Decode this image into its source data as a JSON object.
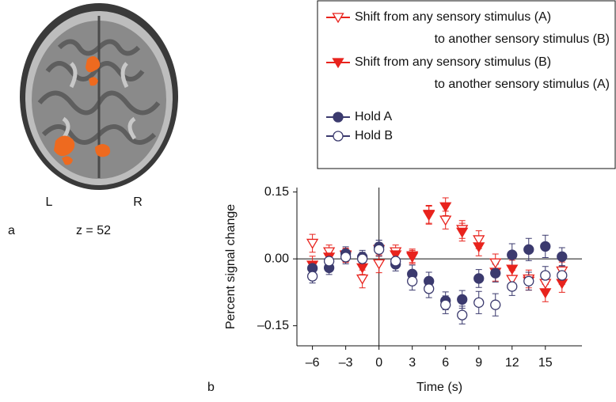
{
  "panel_a": {
    "left_label": "L",
    "right_label": "R",
    "panel_label": "a",
    "slice_label": "z = 52"
  },
  "panel_b_label": "b",
  "chart_data": {
    "type": "line",
    "x_label": "Time (s)",
    "y_label": "Percent signal change",
    "x": [
      -6,
      -4.5,
      -3,
      -1.5,
      0,
      1.5,
      3,
      4.5,
      6,
      7.5,
      9,
      10.5,
      12,
      13.5,
      15,
      16.5
    ],
    "series": [
      {
        "name": "Shift from any sensory stimulus (A) to another sensory stimulus (B)",
        "color": "#e8231d",
        "marker": "triangle-down",
        "filled": false,
        "values": [
          0.035,
          0.016,
          0.007,
          -0.045,
          -0.011,
          0.016,
          0.004,
          0.1,
          0.087,
          0.066,
          0.043,
          -0.009,
          -0.046,
          -0.045,
          -0.055,
          -0.027
        ],
        "errors": [
          0.02,
          0.015,
          0.015,
          0.02,
          0.02,
          0.015,
          0.015,
          0.02,
          0.02,
          0.02,
          0.02,
          0.02,
          0.02,
          0.02,
          0.02,
          0.02
        ]
      },
      {
        "name": "Shift from any sensory stimulus (B) to another sensory stimulus (A)",
        "color": "#e8231d",
        "marker": "triangle-down",
        "filled": true,
        "values": [
          -0.014,
          0.004,
          0.009,
          -0.02,
          0.021,
          0.009,
          0.007,
          0.098,
          0.117,
          0.06,
          0.027,
          -0.03,
          -0.023,
          -0.05,
          -0.076,
          -0.055
        ],
        "errors": [
          0.02,
          0.015,
          0.015,
          0.015,
          0.015,
          0.015,
          0.015,
          0.02,
          0.02,
          0.02,
          0.02,
          0.02,
          0.02,
          0.02,
          0.02,
          0.02
        ]
      },
      {
        "name": "Hold A",
        "color": "#3b3a6e",
        "marker": "circle",
        "filled": true,
        "values": [
          -0.021,
          -0.02,
          0.012,
          0.004,
          0.027,
          -0.012,
          -0.034,
          -0.05,
          -0.094,
          -0.091,
          -0.044,
          -0.032,
          0.009,
          0.021,
          0.028,
          0.005
        ],
        "errors": [
          0.015,
          0.015,
          0.015,
          0.015,
          0.015,
          0.015,
          0.02,
          0.02,
          0.02,
          0.02,
          0.02,
          0.02,
          0.025,
          0.025,
          0.025,
          0.02
        ]
      },
      {
        "name": "Hold B",
        "color": "#3b3a6e",
        "marker": "circle",
        "filled": false,
        "values": [
          -0.039,
          -0.005,
          0.004,
          0,
          0.021,
          -0.005,
          -0.05,
          -0.067,
          -0.103,
          -0.126,
          -0.098,
          -0.103,
          -0.062,
          -0.05,
          -0.037,
          -0.037
        ],
        "errors": [
          0.015,
          0.015,
          0.015,
          0.015,
          0.015,
          0.015,
          0.02,
          0.02,
          0.02,
          0.02,
          0.025,
          0.025,
          0.02,
          0.02,
          0.02,
          0.02
        ]
      }
    ],
    "xlim": [
      -7.4,
      18.3
    ],
    "ylim": [
      -0.195,
      0.16
    ],
    "xticks": [
      {
        "value": -6,
        "label": "–6"
      },
      {
        "value": -3,
        "label": "–3"
      },
      0,
      3,
      6,
      9,
      12,
      15
    ],
    "yticks": [
      {
        "value": -0.15,
        "label": "–0.15"
      },
      {
        "value": 0,
        "label": "0.00"
      },
      0.15
    ]
  }
}
